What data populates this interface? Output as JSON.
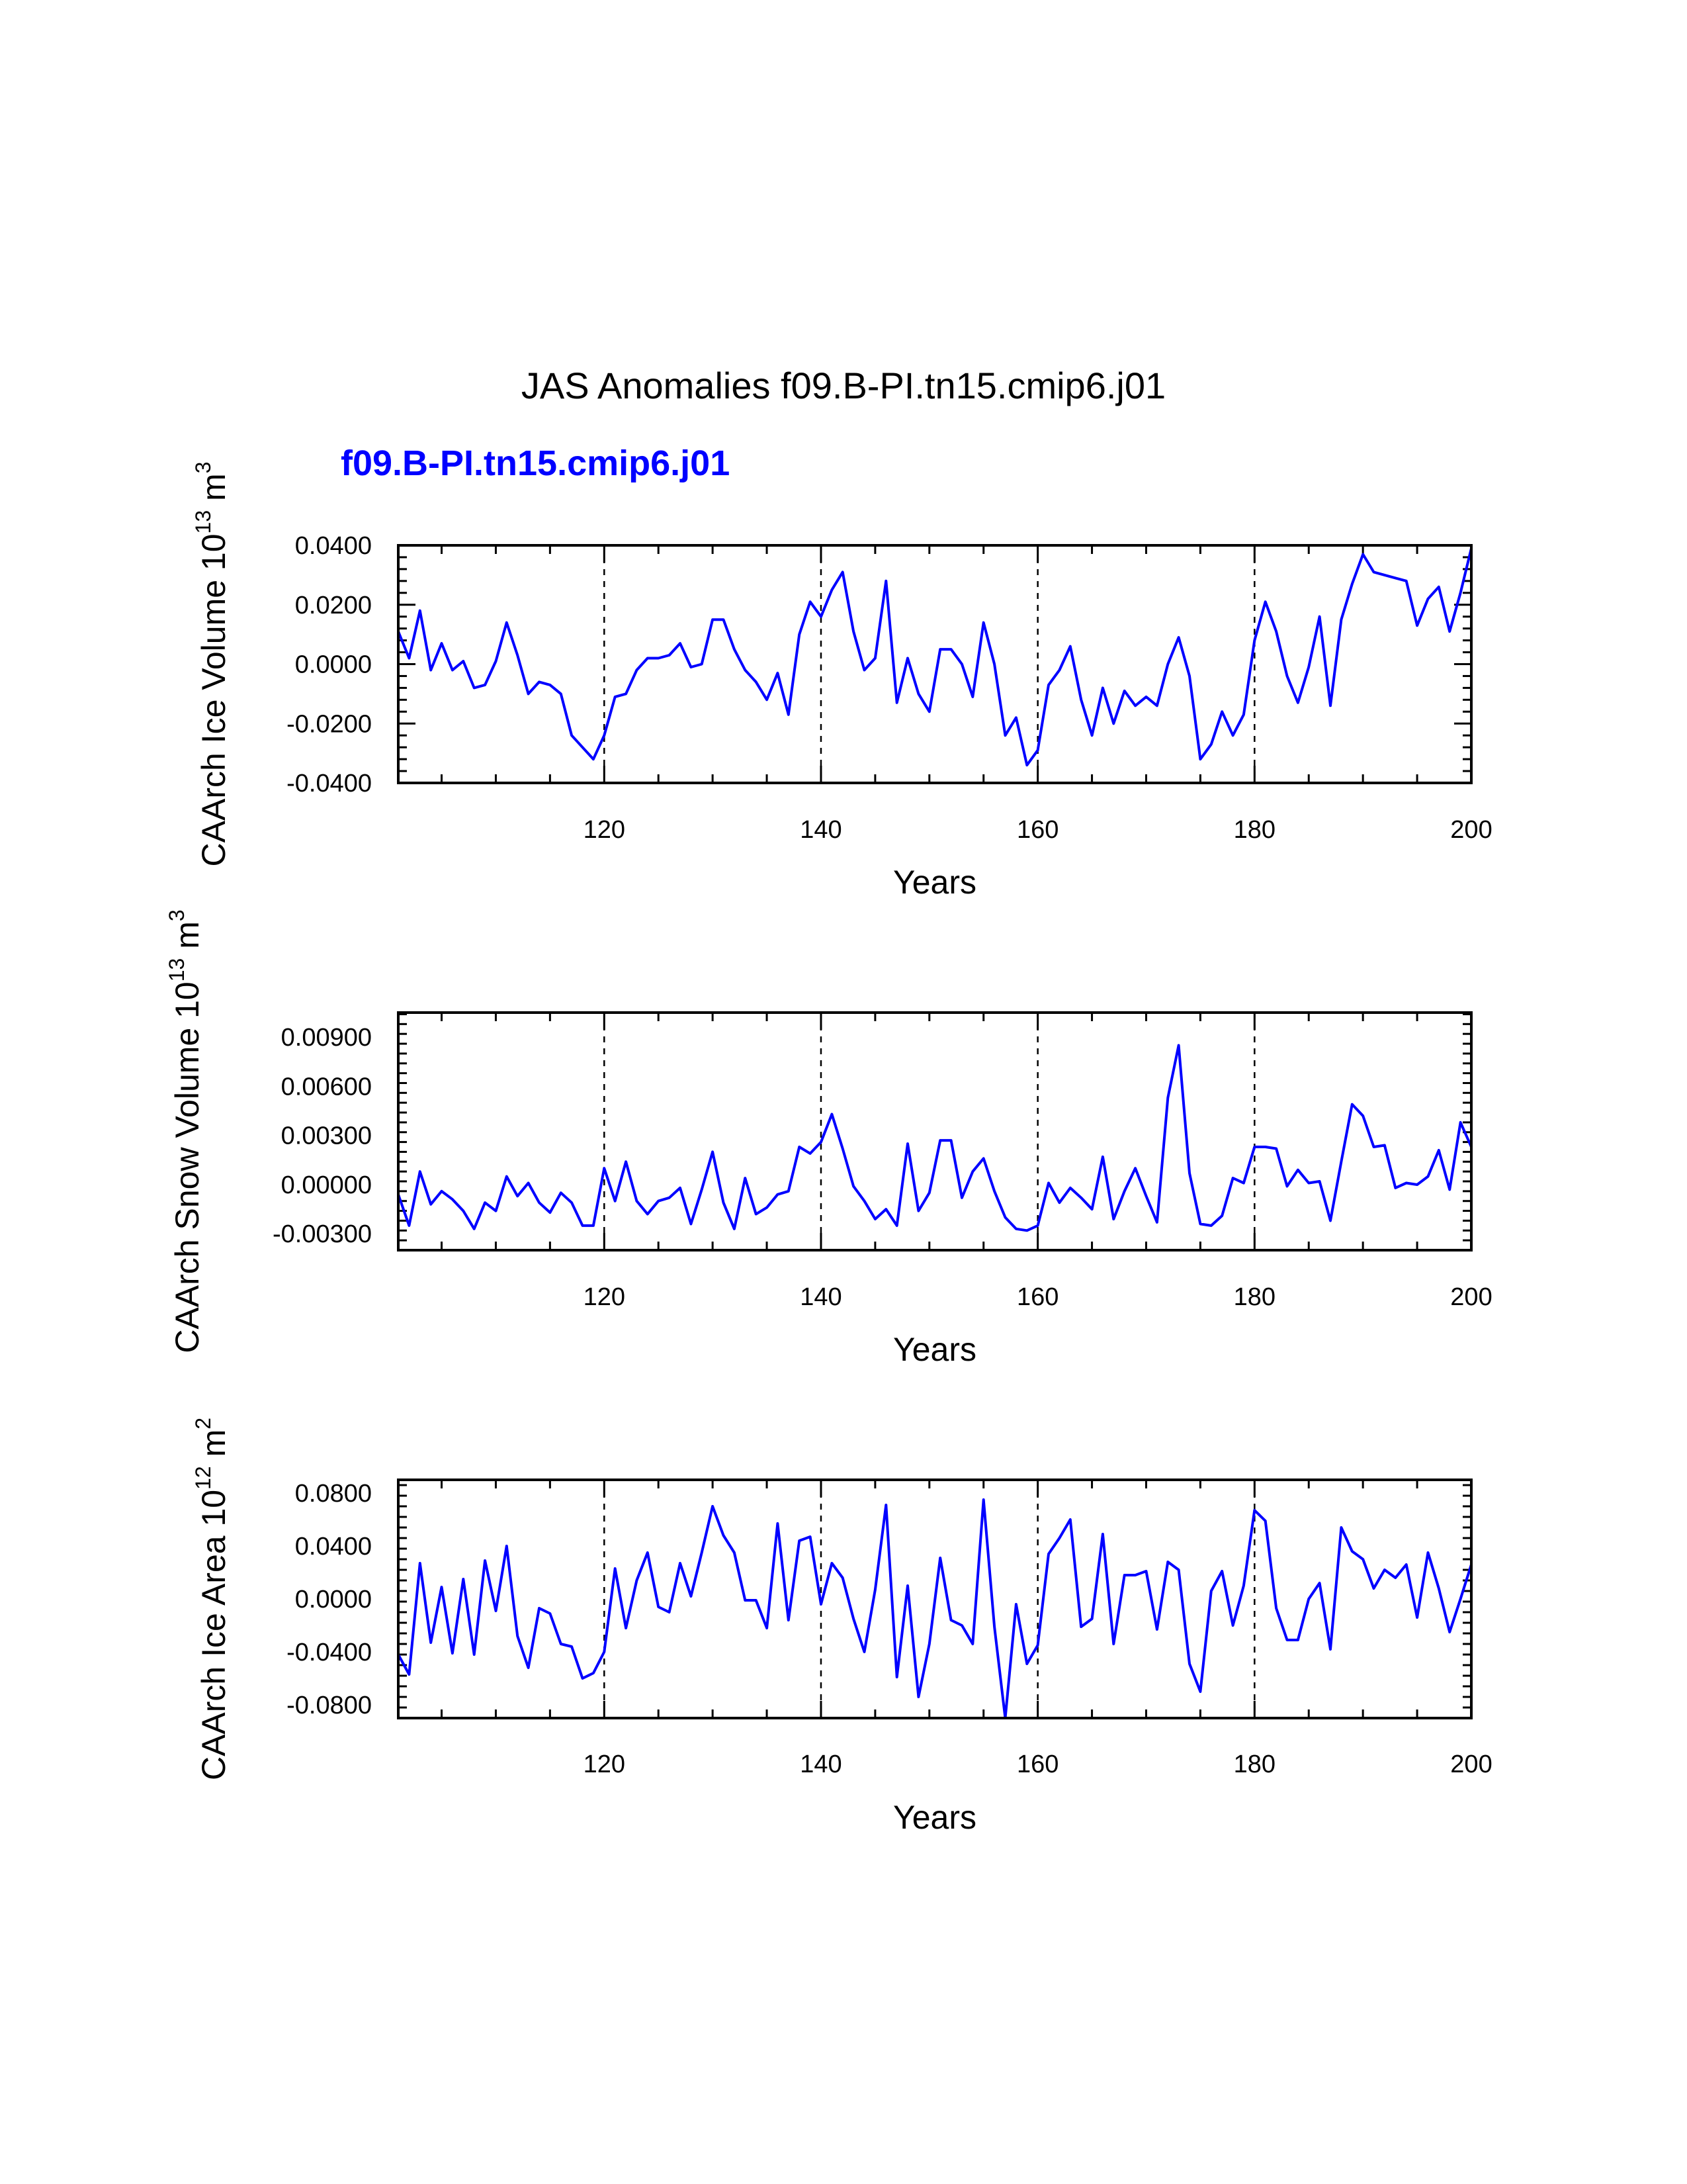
{
  "title": "JAS Anomalies f09.B-PI.tn15.cmip6.j01",
  "subtitle": "f09.B-PI.tn15.cmip6.j01",
  "colors": {
    "series": "#0000ff",
    "axis": "#000000"
  },
  "chart_data": [
    {
      "type": "line",
      "name": "ice-volume",
      "ylabel_main": "CAArch Ice Volume 10",
      "ylabel_exp": "13",
      "ylabel_unit": " m",
      "ylabel_unit_exp": "3",
      "xlabel": "Years",
      "xlim": [
        101,
        200
      ],
      "ylim": [
        -0.04,
        0.04
      ],
      "xticks": [
        120,
        140,
        160,
        180,
        200
      ],
      "yticks": [
        -0.04,
        -0.02,
        0.0,
        0.02,
        0.04
      ],
      "ytick_labels": [
        "-0.0400",
        "-0.0200",
        "0.0000",
        "0.0200",
        "0.0400"
      ],
      "dashed_x": [
        120,
        140,
        160,
        180
      ],
      "x_start": 101,
      "values": [
        0.011,
        0.002,
        0.018,
        -0.002,
        0.007,
        -0.002,
        0.001,
        -0.008,
        -0.007,
        0.001,
        0.014,
        0.003,
        -0.01,
        -0.006,
        -0.007,
        -0.01,
        -0.024,
        -0.028,
        -0.032,
        -0.024,
        -0.011,
        -0.01,
        -0.002,
        0.002,
        0.002,
        0.003,
        0.007,
        -0.001,
        0.0,
        0.015,
        0.015,
        0.005,
        -0.002,
        -0.006,
        -0.012,
        -0.003,
        -0.017,
        0.01,
        0.021,
        0.016,
        0.025,
        0.031,
        0.011,
        -0.002,
        0.002,
        0.028,
        -0.013,
        0.002,
        -0.01,
        -0.016,
        0.005,
        0.005,
        0.0,
        -0.011,
        0.014,
        0.0,
        -0.024,
        -0.018,
        -0.034,
        -0.029,
        -0.007,
        -0.002,
        0.006,
        -0.012,
        -0.024,
        -0.008,
        -0.02,
        -0.009,
        -0.014,
        -0.011,
        -0.014,
        0.0,
        0.009,
        -0.004,
        -0.032,
        -0.027,
        -0.016,
        -0.024,
        -0.017,
        0.008,
        0.021,
        0.011,
        -0.004,
        -0.013,
        -0.001,
        0.016,
        -0.014,
        0.015,
        0.027,
        0.037,
        0.031,
        0.03,
        0.029,
        0.028,
        0.013,
        0.022,
        0.026,
        0.011,
        0.024,
        0.039
      ]
    },
    {
      "type": "line",
      "name": "snow-volume",
      "ylabel_main": "CAArch Snow Volume 10",
      "ylabel_exp": "13",
      "ylabel_unit": " m",
      "ylabel_unit_exp": "3",
      "xlabel": "Years",
      "xlim": [
        101,
        200
      ],
      "ylim": [
        -0.004,
        0.0105
      ],
      "xticks": [
        120,
        140,
        160,
        180,
        200
      ],
      "yticks": [
        -0.003,
        0.0,
        0.003,
        0.006,
        0.009
      ],
      "ytick_labels": [
        "-0.00300",
        "0.00000",
        "0.00300",
        "0.00600",
        "0.00900"
      ],
      "dashed_x": [
        120,
        140,
        160,
        180
      ],
      "x_start": 101,
      "values": [
        -0.0006,
        -0.0025,
        0.0008,
        -0.0012,
        -0.0004,
        -0.0009,
        -0.0016,
        -0.0027,
        -0.0011,
        -0.0016,
        0.0005,
        -0.0007,
        0.0001,
        -0.0011,
        -0.0017,
        -0.0005,
        -0.0011,
        -0.0025,
        -0.0025,
        0.001,
        -0.001,
        0.0014,
        -0.001,
        -0.0018,
        -0.001,
        -0.0008,
        -0.0002,
        -0.0024,
        -0.0003,
        0.002,
        -0.0011,
        -0.0027,
        0.0004,
        -0.0018,
        -0.0014,
        -0.0006,
        -0.0004,
        0.0023,
        0.0019,
        0.0026,
        0.0043,
        0.0022,
        -0.0001,
        -0.001,
        -0.0021,
        -0.0015,
        -0.0025,
        0.0025,
        -0.0016,
        -0.0005,
        0.0027,
        0.0027,
        -0.0008,
        0.0008,
        0.0016,
        -0.0004,
        -0.002,
        -0.0027,
        -0.0028,
        -0.0025,
        0.0001,
        -0.0011,
        -0.0002,
        -0.0008,
        -0.0015,
        0.0017,
        -0.0021,
        -0.0004,
        0.001,
        -0.0007,
        -0.0023,
        0.0053,
        0.0085,
        0.0007,
        -0.0024,
        -0.0025,
        -0.0019,
        0.0004,
        0.0001,
        0.0023,
        0.0023,
        0.0022,
        -0.0001,
        0.0009,
        0.0001,
        0.0002,
        -0.0022,
        0.0014,
        0.0049,
        0.0042,
        0.0023,
        0.0024,
        -0.0002,
        0.0001,
        0.0,
        0.0005,
        0.0021,
        -0.0003,
        0.0038,
        0.0023
      ]
    },
    {
      "type": "line",
      "name": "ice-area",
      "ylabel_main": "CAArch Ice Area 10",
      "ylabel_exp": "12",
      "ylabel_unit": " m",
      "ylabel_unit_exp": "2",
      "xlabel": "Years",
      "xlim": [
        101,
        200
      ],
      "ylim": [
        -0.09,
        0.09
      ],
      "xticks": [
        120,
        140,
        160,
        180,
        200
      ],
      "yticks": [
        -0.08,
        -0.04,
        0.0,
        0.04,
        0.08
      ],
      "ytick_labels": [
        "-0.0800",
        "-0.0400",
        "0.0000",
        "0.0400",
        "0.0800"
      ],
      "dashed_x": [
        120,
        140,
        160,
        180
      ],
      "x_start": 101,
      "values": [
        -0.042,
        -0.057,
        0.027,
        -0.033,
        0.009,
        -0.041,
        0.015,
        -0.042,
        0.029,
        -0.009,
        0.04,
        -0.028,
        -0.052,
        -0.007,
        -0.011,
        -0.034,
        -0.036,
        -0.06,
        -0.056,
        -0.04,
        0.023,
        -0.022,
        0.014,
        0.035,
        -0.006,
        -0.01,
        0.027,
        0.002,
        0.035,
        0.07,
        0.048,
        0.035,
        -0.001,
        -0.001,
        -0.022,
        0.057,
        -0.016,
        0.044,
        0.047,
        -0.004,
        0.027,
        0.016,
        -0.015,
        -0.04,
        0.007,
        0.071,
        -0.059,
        0.01,
        -0.074,
        -0.034,
        0.031,
        -0.016,
        -0.02,
        -0.034,
        0.075,
        -0.021,
        -0.09,
        -0.004,
        -0.049,
        -0.035,
        0.034,
        0.046,
        0.06,
        -0.021,
        -0.015,
        0.049,
        -0.034,
        0.018,
        0.018,
        0.021,
        -0.023,
        0.028,
        0.022,
        -0.049,
        -0.07,
        0.006,
        0.021,
        -0.02,
        0.01,
        0.067,
        0.059,
        -0.007,
        -0.031,
        -0.031,
        0.0,
        0.012,
        -0.038,
        0.054,
        0.036,
        0.03,
        0.008,
        0.022,
        0.016,
        0.026,
        -0.014,
        0.035,
        0.008,
        -0.025,
        0.0,
        0.026
      ]
    }
  ]
}
